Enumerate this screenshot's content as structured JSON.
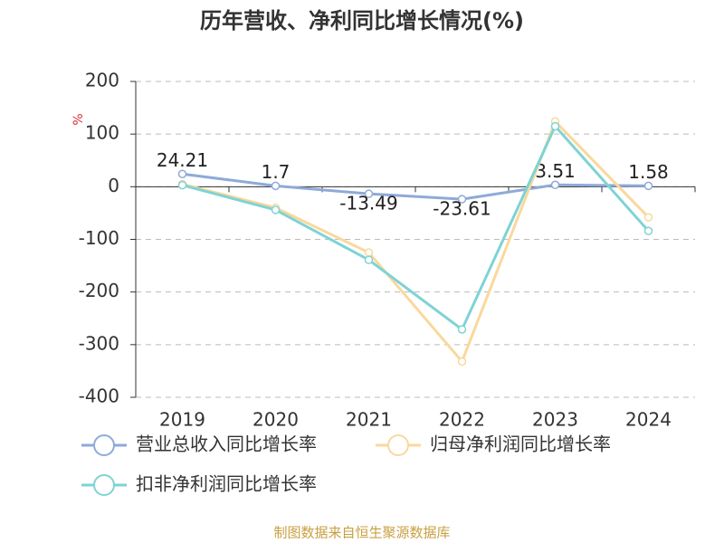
{
  "chart_data": {
    "type": "line",
    "title": "历年营收、净利同比增长情况(%)",
    "y_label": "%",
    "source": "制图数据来自恒生聚源数据库",
    "categories": [
      "2019",
      "2020",
      "2021",
      "2022",
      "2023",
      "2024"
    ],
    "series": [
      {
        "name": "营业总收入同比增长率",
        "color": "#8eaad8",
        "values": [
          24.21,
          1.7,
          -13.49,
          -23.61,
          3.51,
          1.58
        ],
        "labels": true
      },
      {
        "name": "归母净利润同比增长率",
        "color": "#fad89c",
        "values": [
          5,
          -40,
          -125,
          -332,
          124,
          -58
        ]
      },
      {
        "name": "扣非净利润同比增长率",
        "color": "#7fd3d4",
        "values": [
          3,
          -44,
          -139,
          -271,
          115,
          -84
        ]
      }
    ],
    "ylim": [
      -400,
      200
    ],
    "yticks": [
      -400,
      -300,
      -200,
      -100,
      0,
      100,
      200
    ],
    "grid": true
  }
}
